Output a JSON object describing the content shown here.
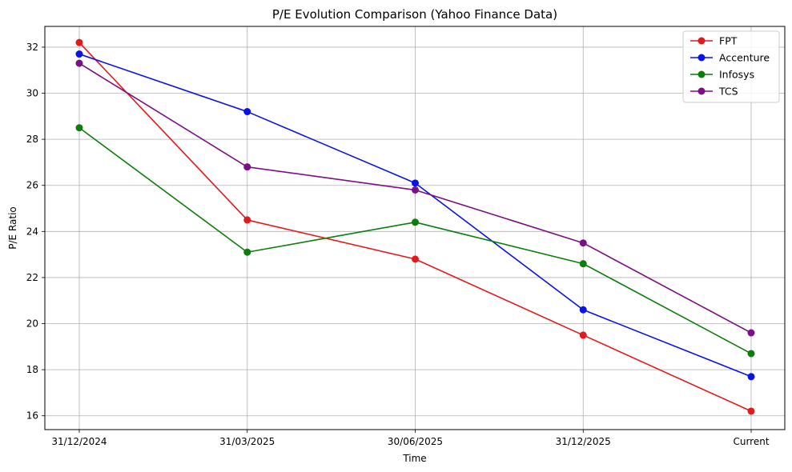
{
  "chart_data": {
    "type": "line",
    "title": "P/E Evolution Comparison (Yahoo Finance Data)",
    "xlabel": "Time",
    "ylabel": "P/E Ratio",
    "categories": [
      "31/12/2024",
      "31/03/2025",
      "30/06/2025",
      "31/12/2025",
      "Current"
    ],
    "ylim": [
      15.4,
      32.9
    ],
    "yticks": [
      16,
      18,
      20,
      22,
      24,
      26,
      28,
      30,
      32
    ],
    "grid": true,
    "legend_position": "top-right",
    "series": [
      {
        "name": "FPT",
        "color": "#e31a1c",
        "values": [
          32.2,
          24.5,
          22.8,
          19.5,
          16.2
        ]
      },
      {
        "name": "Accenture",
        "color": "#0b12e8",
        "values": [
          31.7,
          29.2,
          26.1,
          20.6,
          17.7
        ]
      },
      {
        "name": "Infosys",
        "color": "#0a7d0a",
        "values": [
          28.5,
          23.1,
          24.4,
          22.6,
          18.7
        ]
      },
      {
        "name": "TCS",
        "color": "#7b0f84",
        "values": [
          31.3,
          26.8,
          25.8,
          23.5,
          19.6
        ]
      }
    ]
  }
}
